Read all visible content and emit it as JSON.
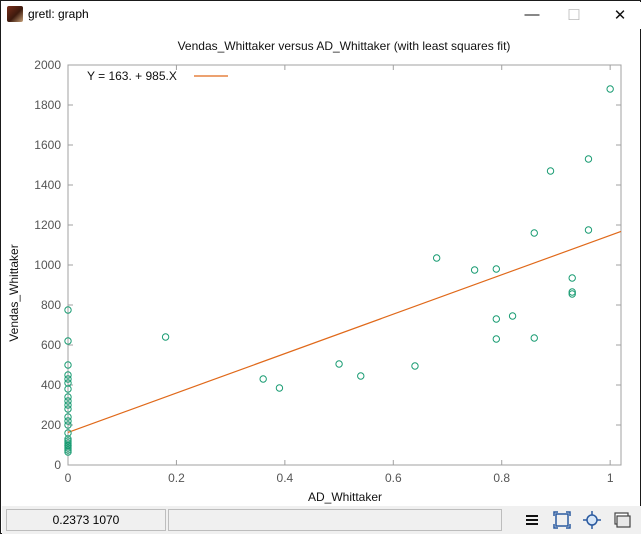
{
  "window": {
    "title": "gretl: graph",
    "minimize_icon": "minimize-icon",
    "maximize_icon": "maximize-icon",
    "close_glyph": "✕",
    "min_glyph": "—",
    "max_glyph": "☐"
  },
  "chart_data": {
    "type": "scatter",
    "title": "Vendas_Whittaker versus AD_Whittaker (with least squares fit)",
    "xlabel": "AD_Whittaker",
    "ylabel": "Vendas_Whittaker",
    "xlim": [
      0,
      1.02
    ],
    "ylim": [
      0,
      2000
    ],
    "xticks": [
      0,
      0.2,
      0.4,
      0.6,
      0.8,
      1
    ],
    "xtick_labels": [
      "0",
      "0.2",
      "0.4",
      "0.6",
      "0.8",
      "1"
    ],
    "yticks": [
      0,
      200,
      400,
      600,
      800,
      1000,
      1200,
      1400,
      1600,
      1800,
      2000
    ],
    "ytick_labels": [
      "0",
      "200",
      "400",
      "600",
      "800",
      "1000",
      "1200",
      "1400",
      "1600",
      "1800",
      "2000"
    ],
    "grid": false,
    "legend_position": "top-left",
    "colors": {
      "points": "#1a9c73",
      "fit": "#e0691a",
      "axes": "#a0a0a0",
      "text": "#111111"
    },
    "fit": {
      "label": "Y = 163. + 985.X",
      "intercept": 163,
      "slope": 985
    },
    "points": [
      {
        "x": 0,
        "y": 775
      },
      {
        "x": 0,
        "y": 620
      },
      {
        "x": 0,
        "y": 500
      },
      {
        "x": 0,
        "y": 450
      },
      {
        "x": 0,
        "y": 430
      },
      {
        "x": 0,
        "y": 410
      },
      {
        "x": 0,
        "y": 380
      },
      {
        "x": 0,
        "y": 340
      },
      {
        "x": 0,
        "y": 320
      },
      {
        "x": 0,
        "y": 300
      },
      {
        "x": 0,
        "y": 280
      },
      {
        "x": 0,
        "y": 240
      },
      {
        "x": 0,
        "y": 220
      },
      {
        "x": 0,
        "y": 200
      },
      {
        "x": 0,
        "y": 160
      },
      {
        "x": 0,
        "y": 130
      },
      {
        "x": 0,
        "y": 120
      },
      {
        "x": 0,
        "y": 110
      },
      {
        "x": 0,
        "y": 100
      },
      {
        "x": 0,
        "y": 95
      },
      {
        "x": 0,
        "y": 85
      },
      {
        "x": 0,
        "y": 75
      },
      {
        "x": 0,
        "y": 65
      },
      {
        "x": 0.18,
        "y": 640
      },
      {
        "x": 0.36,
        "y": 430
      },
      {
        "x": 0.39,
        "y": 385
      },
      {
        "x": 0.5,
        "y": 505
      },
      {
        "x": 0.54,
        "y": 445
      },
      {
        "x": 0.64,
        "y": 495
      },
      {
        "x": 0.68,
        "y": 1035
      },
      {
        "x": 0.75,
        "y": 975
      },
      {
        "x": 0.79,
        "y": 980
      },
      {
        "x": 0.79,
        "y": 730
      },
      {
        "x": 0.79,
        "y": 630
      },
      {
        "x": 0.82,
        "y": 745
      },
      {
        "x": 0.86,
        "y": 1160
      },
      {
        "x": 0.86,
        "y": 635
      },
      {
        "x": 0.89,
        "y": 1470
      },
      {
        "x": 0.93,
        "y": 935
      },
      {
        "x": 0.93,
        "y": 865
      },
      {
        "x": 0.93,
        "y": 855
      },
      {
        "x": 0.96,
        "y": 1530
      },
      {
        "x": 0.96,
        "y": 1175
      },
      {
        "x": 1.0,
        "y": 1880
      }
    ]
  },
  "statusbar": {
    "coords": "0.2373 1070",
    "tools": [
      {
        "name": "menu-icon"
      },
      {
        "name": "zoom-icon"
      },
      {
        "name": "fit-icon"
      },
      {
        "name": "close-graph-icon"
      }
    ]
  }
}
